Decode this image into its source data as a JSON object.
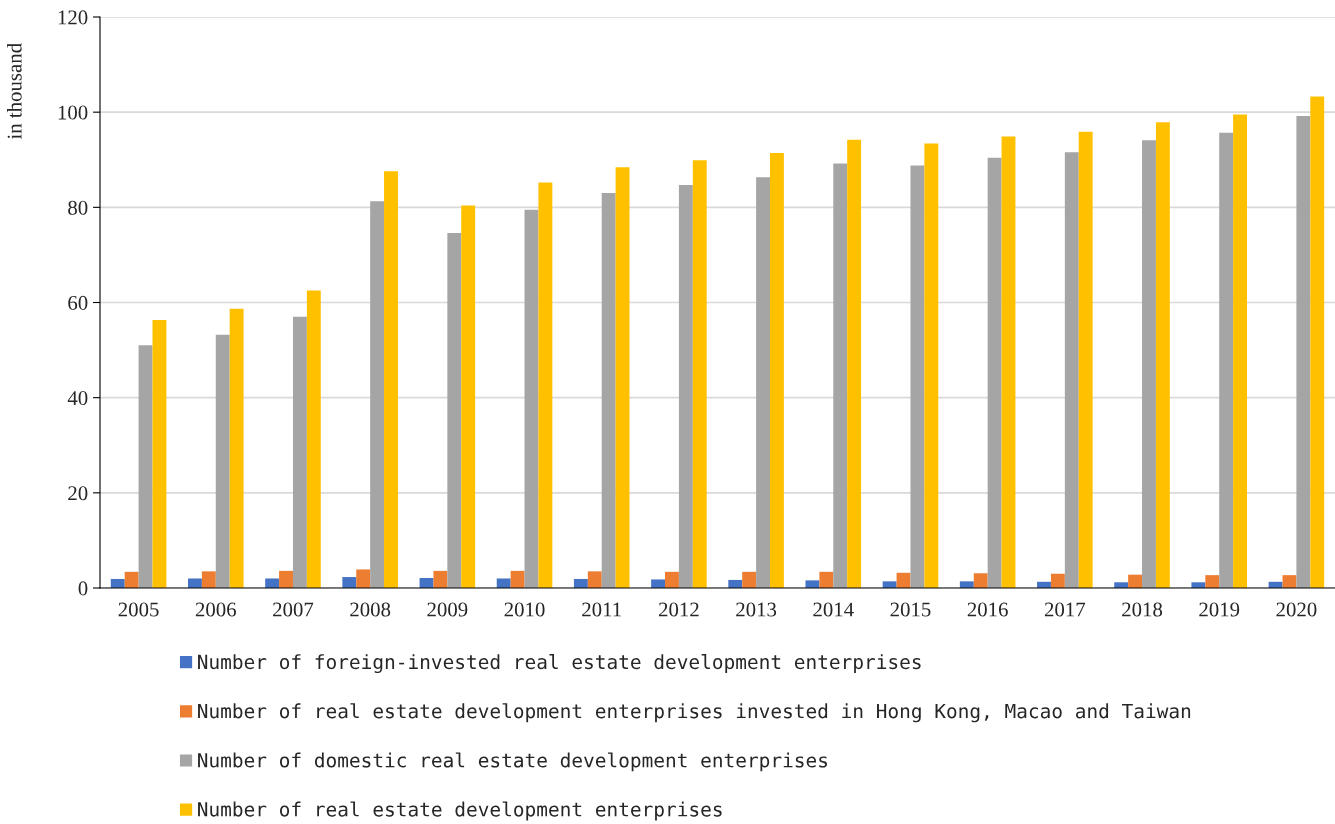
{
  "chart_data": {
    "type": "bar",
    "ylabel": "in thousand",
    "categories": [
      "2005",
      "2006",
      "2007",
      "2008",
      "2009",
      "2010",
      "2011",
      "2012",
      "2013",
      "2014",
      "2015",
      "2016",
      "2017",
      "2018",
      "2019",
      "2020"
    ],
    "series": [
      {
        "name": "Number of foreign-invested real estate development enterprises",
        "color": "#4472c4",
        "values": [
          1.9,
          2.0,
          2.0,
          2.3,
          2.1,
          2.0,
          1.9,
          1.8,
          1.7,
          1.6,
          1.4,
          1.4,
          1.3,
          1.2,
          1.2,
          1.3
        ]
      },
      {
        "name": "Number of real estate development enterprises invested in Hong Kong, Macao and Taiwan",
        "color": "#ed7d31",
        "values": [
          3.4,
          3.5,
          3.6,
          3.9,
          3.6,
          3.6,
          3.5,
          3.4,
          3.4,
          3.4,
          3.2,
          3.1,
          3.0,
          2.8,
          2.7,
          2.7
        ]
      },
      {
        "name": "Number of domestic real estate development enterprises",
        "color": "#a5a5a5",
        "values": [
          51.0,
          53.2,
          57.0,
          81.3,
          74.6,
          79.5,
          83.0,
          84.7,
          86.3,
          89.2,
          88.8,
          90.4,
          91.6,
          94.1,
          95.7,
          99.2
        ]
      },
      {
        "name": "Number of real estate development enterprises",
        "color": "#ffc000",
        "values": [
          56.3,
          58.7,
          62.5,
          87.6,
          80.4,
          85.2,
          88.4,
          89.9,
          91.4,
          94.2,
          93.4,
          94.9,
          95.9,
          97.9,
          99.5,
          103.3
        ]
      }
    ],
    "ylim": [
      0,
      120
    ],
    "yticks": [
      0,
      20,
      40,
      60,
      80,
      100,
      120
    ],
    "grid": "y",
    "legend": "bottom"
  }
}
